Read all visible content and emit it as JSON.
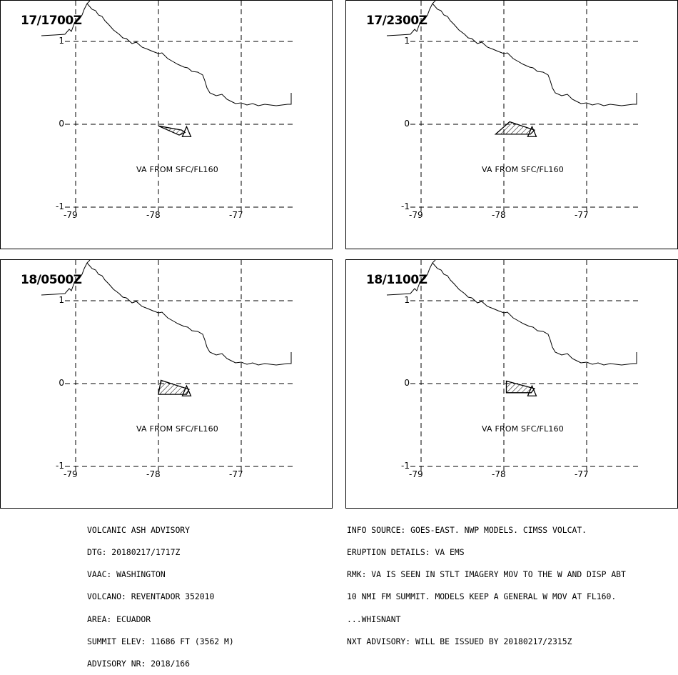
{
  "panels": [
    {
      "time": "17/1700Z",
      "label": "VA FROM SFC/FL160",
      "polygon": [
        [
          -78.0,
          -0.02
        ],
        [
          -77.75,
          -0.13
        ],
        [
          -77.68,
          -0.1
        ],
        [
          -77.72,
          -0.07
        ]
      ]
    },
    {
      "time": "17/2300Z",
      "label": "VA FROM SFC/FL160",
      "polygon": [
        [
          -78.1,
          -0.12
        ],
        [
          -77.93,
          0.03
        ],
        [
          -77.63,
          -0.07
        ],
        [
          -77.68,
          -0.12
        ]
      ]
    },
    {
      "time": "18/0500Z",
      "label": "VA FROM SFC/FL160",
      "polygon": [
        [
          -78.0,
          -0.13
        ],
        [
          -77.97,
          0.04
        ],
        [
          -77.63,
          -0.07
        ],
        [
          -77.66,
          -0.13
        ]
      ]
    },
    {
      "time": "18/1100Z",
      "label": "VA FROM SFC/FL160",
      "polygon": [
        [
          -77.97,
          -0.11
        ],
        [
          -77.97,
          0.03
        ],
        [
          -77.63,
          -0.06
        ],
        [
          -77.67,
          -0.11
        ]
      ]
    }
  ],
  "axes": {
    "x_ticks": [
      "-79",
      "-78",
      "-77"
    ],
    "y_ticks": [
      "1",
      "0",
      "-1"
    ],
    "lon_range": [
      -79.4,
      -76.45
    ],
    "lat_range": [
      -1.05,
      1.45
    ],
    "volcano": {
      "lon": -77.66,
      "lat": -0.08
    }
  },
  "footer": {
    "left": [
      "VOLCANIC ASH ADVISORY",
      "DTG: 20180217/1717Z",
      "VAAC: WASHINGTON",
      "VOLCANO: REVENTADOR 352010",
      "AREA: ECUADOR",
      "SUMMIT ELEV: 11686 FT (3562 M)",
      "ADVISORY NR: 2018/166"
    ],
    "right": [
      "INFO SOURCE: GOES-EAST. NWP MODELS. CIMSS VOLCAT.",
      "ERUPTION DETAILS: VA EMS",
      "RMK: VA IS SEEN IN STLT IMAGERY MOV TO THE W AND DISP ABT",
      "10 NMI FM SUMMIT. MODELS KEEP A GENERAL W MOV AT FL160.",
      "...WHISNANT",
      "NXT ADVISORY: WILL BE ISSUED BY 20180217/2315Z"
    ]
  },
  "colors": {
    "line": "#000000",
    "background": "#ffffff"
  }
}
